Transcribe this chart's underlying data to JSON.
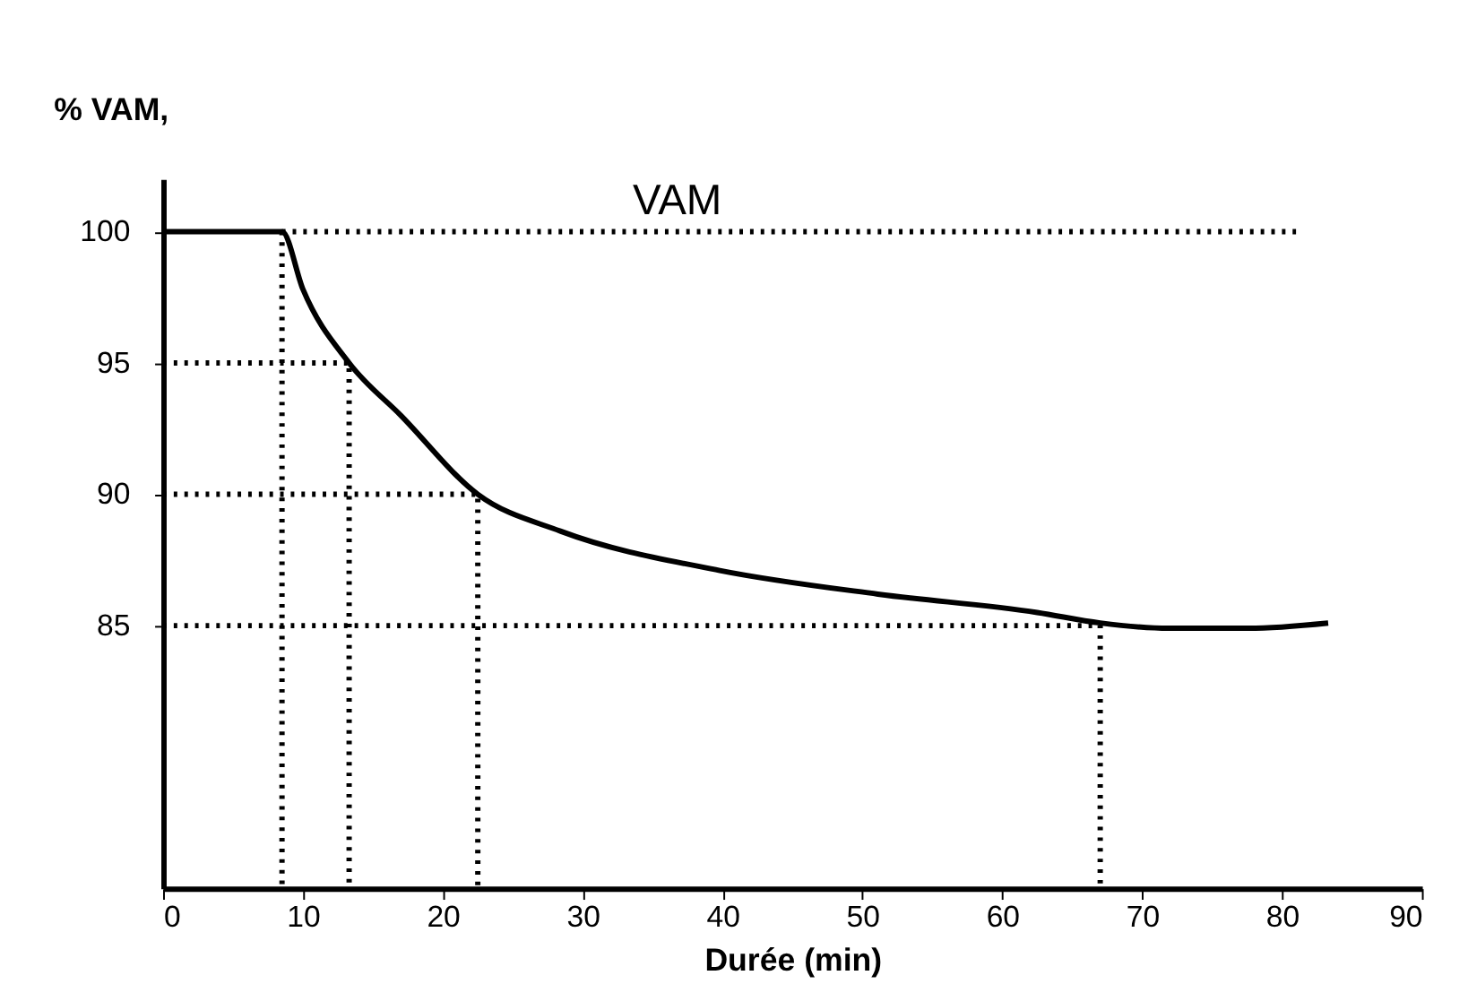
{
  "chart_data": {
    "type": "line",
    "xlabel": "Durée (min)",
    "ylabel": "% VAM,",
    "xlim": [
      0,
      90
    ],
    "xticks": [
      0,
      10,
      20,
      30,
      40,
      50,
      60,
      70,
      80,
      90
    ],
    "ylim": [
      75,
      102
    ],
    "yticks": [
      85,
      90,
      95,
      100
    ],
    "grid": false,
    "marker": "none",
    "annotations": [
      "VAM"
    ],
    "series": [
      {
        "color": "#000000",
        "line_style": "solid",
        "x": [
          0,
          8.5,
          10,
          13.3,
          17,
          22.5,
          28.4,
          39.8,
          51.1,
          62.5,
          67,
          71.9,
          77.6,
          83.3
        ],
        "values": [
          100,
          100,
          97.8,
          95,
          93,
          90,
          88.6,
          87.1,
          86.2,
          85.5,
          85.1,
          84.9,
          84.9,
          85.1
        ]
      },
      {
        "color": "#000000",
        "line_style": "dotted",
        "x": [
          8.5,
          81
        ],
        "values": [
          100,
          100
        ]
      },
      {
        "color": "#000000",
        "line_style": "dotted",
        "x": [
          8.5,
          8.5
        ],
        "values": [
          100,
          75
        ]
      },
      {
        "color": "#000000",
        "line_style": "dotted",
        "x": [
          0,
          13.3,
          13.3
        ],
        "values": [
          95,
          95,
          75
        ]
      },
      {
        "color": "#000000",
        "line_style": "dotted",
        "x": [
          0,
          22.5,
          22.5
        ],
        "values": [
          90,
          90,
          75
        ]
      },
      {
        "color": "#000000",
        "line_style": "dotted",
        "x": [
          0,
          67,
          67
        ],
        "values": [
          85,
          85,
          75
        ]
      }
    ]
  }
}
